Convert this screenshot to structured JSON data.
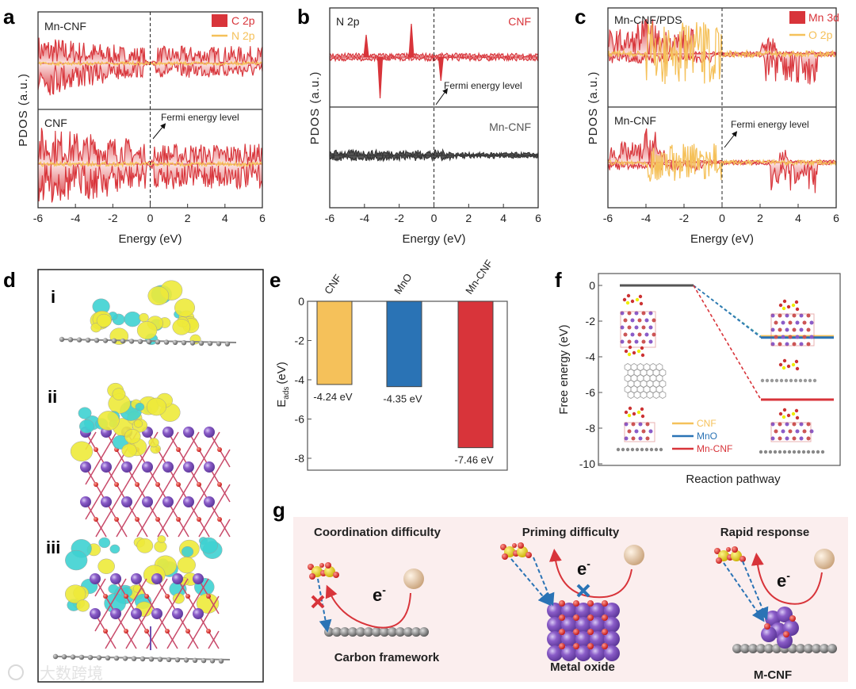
{
  "panel_labels": {
    "a": "a",
    "b": "b",
    "c": "c",
    "d": "d",
    "e": "e",
    "f": "f",
    "g": "g"
  },
  "panel_d": {
    "sublabels": [
      "i",
      "ii",
      "iii"
    ]
  },
  "panel_g": {
    "sections": [
      {
        "title": "Coordination difficulty",
        "caption": "Carbon framework",
        "electron": "e-"
      },
      {
        "title": "Priming difficulty",
        "caption": "Metal oxide",
        "electron": "e-"
      },
      {
        "title": "Rapid response",
        "caption": "M-CNF",
        "electron": "e-"
      }
    ]
  },
  "watermark": "大数跨境",
  "colors": {
    "red": "#d8343a",
    "yellow": "#f5c15a",
    "blue": "#2a73b5",
    "gray": "#555555",
    "pink_bg": "#fbeeee"
  },
  "chart_data": [
    {
      "id": "a",
      "type": "area",
      "xlabel": "Energy (eV)",
      "ylabel": "PDOS (a.u.)",
      "xlim": [
        -6,
        6
      ],
      "xticks": [
        -6,
        -4,
        -2,
        0,
        2,
        4,
        6
      ],
      "legend": [
        "C 2p",
        "N 2p"
      ],
      "legend_placement": "top-right",
      "subplots": [
        {
          "label": "Mn-CNF"
        },
        {
          "label": "CNF"
        }
      ],
      "annotation": "Fermi energy level"
    },
    {
      "id": "b",
      "type": "area",
      "xlabel": "Energy (eV)",
      "ylabel": "PDOS (a.u.)",
      "title": "N 2p",
      "xlim": [
        -6,
        6
      ],
      "xticks": [
        -6,
        -4,
        -2,
        0,
        2,
        4,
        6
      ],
      "subplots": [
        {
          "label": "CNF",
          "peaks": [
            {
              "x": -3.9,
              "dir": "up"
            },
            {
              "x": -3.1,
              "dir": "down"
            },
            {
              "x": -1.3,
              "dir": "up"
            },
            {
              "x": 0.4,
              "dir": "down"
            }
          ]
        },
        {
          "label": "Mn-CNF"
        }
      ],
      "annotation": "Fermi energy level"
    },
    {
      "id": "c",
      "type": "area",
      "xlabel": "Energy (eV)",
      "ylabel": "PDOS (a.u.)",
      "xlim": [
        -6,
        6
      ],
      "xticks": [
        -6,
        -4,
        -2,
        0,
        2,
        4,
        6
      ],
      "legend": [
        "Mn 3d",
        "O 2p"
      ],
      "legend_placement": "top-right",
      "subplots": [
        {
          "label": "Mn-CNF/PDS"
        },
        {
          "label": "Mn-CNF"
        }
      ],
      "annotation": "Fermi energy level"
    },
    {
      "id": "e",
      "type": "bar",
      "ylabel": "E_ads (eV)",
      "ylabel_main": "E",
      "ylabel_sub": "ads",
      "ylabel_unit": "(eV)",
      "categories": [
        "CNF",
        "MnO",
        "Mn-CNF"
      ],
      "values": [
        -4.24,
        -4.35,
        -7.46
      ],
      "data_labels": [
        "-4.24 eV",
        "-4.35 eV",
        "-7.46 eV"
      ],
      "ylim": [
        -8.5,
        0
      ],
      "yticks": [
        0,
        -2,
        -4,
        -6,
        -8
      ]
    },
    {
      "id": "f",
      "type": "line",
      "xlabel": "Reaction pathway",
      "ylabel": "Free energy (eV)",
      "ylim": [
        -10,
        0.5
      ],
      "yticks": [
        0,
        -2,
        -4,
        -6,
        -8,
        -10
      ],
      "series": [
        {
          "name": "CNF",
          "values": [
            0,
            -2.85
          ]
        },
        {
          "name": "MnO",
          "values": [
            0,
            -2.92
          ]
        },
        {
          "name": "Mn-CNF",
          "values": [
            0,
            -6.4
          ]
        }
      ],
      "legend_placement": "bottom-center"
    }
  ]
}
